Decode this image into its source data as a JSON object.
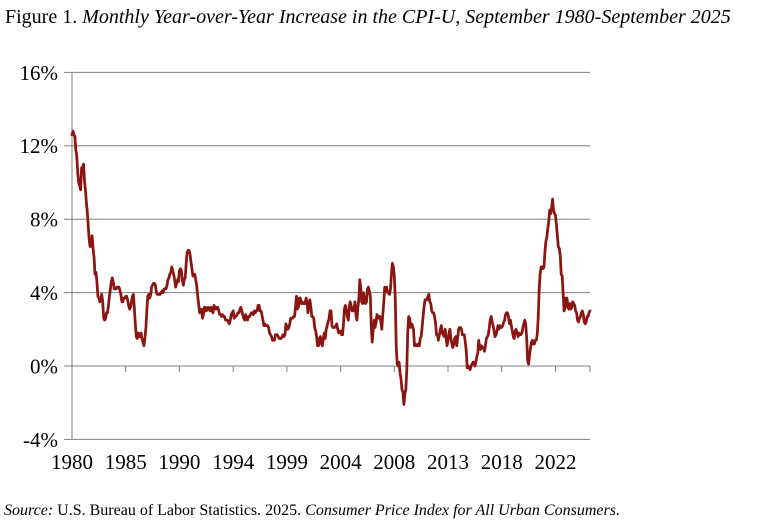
{
  "title": {
    "prefix": "Figure 1. ",
    "italic": "Monthly Year-over-Year Increase in the CPI-U, September 1980-September 2025"
  },
  "source": {
    "label": "Source:",
    "text": " U.S. Bureau of Labor Statistics. 2025. ",
    "publication": "Consumer Price Index for All Urban Consumers."
  },
  "chart_data": {
    "type": "line",
    "title": "Monthly Year-over-Year Increase in the CPI-U, September 1980-September 2025",
    "xlabel": "",
    "ylabel": "",
    "ylim": [
      -4,
      16
    ],
    "grid": true,
    "legend": "none",
    "line_color": "#8B1510",
    "grid_color": "#808080",
    "frequency": "monthly",
    "start": "1980-09",
    "end": "2025-09",
    "y_axis": {
      "ticks": [
        {
          "label": "16%",
          "value": 16
        },
        {
          "label": "12%",
          "value": 12
        },
        {
          "label": "8%",
          "value": 8
        },
        {
          "label": "4%",
          "value": 4
        },
        {
          "label": "0%",
          "value": 0
        },
        {
          "label": "-4%",
          "value": -4
        }
      ]
    },
    "x_axis": {
      "ticks": [
        {
          "label": "1980",
          "month": 0
        },
        {
          "label": "1985",
          "month": 56
        },
        {
          "label": "1990",
          "month": 112
        },
        {
          "label": "1994",
          "month": 168
        },
        {
          "label": "1999",
          "month": 224
        },
        {
          "label": "2004",
          "month": 280
        },
        {
          "label": "2008",
          "month": 336
        },
        {
          "label": "2013",
          "month": 392
        },
        {
          "label": "2018",
          "month": 448
        },
        {
          "label": "2022",
          "month": 504
        }
      ]
    },
    "values_by_year": {
      "1980": [
        12.6,
        12.8,
        12.6,
        12.5
      ],
      "1981": [
        11.8,
        11.4,
        10.5,
        10.0,
        9.8,
        9.6,
        10.8,
        10.8,
        11.0,
        10.1,
        9.6,
        8.9
      ],
      "1982": [
        8.4,
        7.6,
        6.8,
        6.5,
        6.7,
        7.1,
        6.4,
        5.9,
        5.0,
        5.1,
        4.6,
        3.8
      ],
      "1983": [
        3.7,
        3.5,
        3.6,
        3.9,
        3.5,
        2.6,
        2.5,
        2.6,
        2.9,
        2.9,
        3.3,
        3.8
      ],
      "1984": [
        4.2,
        4.6,
        4.8,
        4.6,
        4.2,
        4.2,
        4.2,
        4.3,
        4.3,
        4.3,
        4.1,
        3.9
      ],
      "1985": [
        3.5,
        3.5,
        3.7,
        3.7,
        3.8,
        3.8,
        3.6,
        3.3,
        3.1,
        3.2,
        3.5,
        3.8
      ],
      "1986": [
        3.9,
        3.1,
        2.3,
        1.6,
        1.5,
        1.8,
        1.6,
        1.6,
        1.8,
        1.5,
        1.3,
        1.1
      ],
      "1987": [
        1.5,
        2.1,
        3.0,
        3.8,
        3.9,
        3.7,
        3.9,
        4.3,
        4.4,
        4.5,
        4.5,
        4.4
      ],
      "1988": [
        4.0,
        3.9,
        3.9,
        3.9,
        3.9,
        4.0,
        4.1,
        4.0,
        4.2,
        4.2,
        4.2,
        4.4
      ],
      "1989": [
        4.7,
        4.8,
        5.0,
        5.1,
        5.4,
        5.2,
        5.0,
        4.7,
        4.3,
        4.5,
        4.7,
        4.6
      ],
      "1990": [
        5.2,
        5.3,
        5.2,
        4.7,
        4.4,
        4.7,
        4.8,
        5.6,
        6.2,
        6.3,
        6.3,
        6.1
      ],
      "1991": [
        5.7,
        5.3,
        4.9,
        4.9,
        5.0,
        4.7,
        4.4,
        3.8,
        3.4,
        2.9,
        3.0,
        3.1
      ],
      "1992": [
        2.6,
        2.8,
        3.2,
        3.2,
        3.0,
        3.1,
        3.2,
        3.1,
        3.0,
        3.2,
        3.0,
        2.9
      ],
      "1993": [
        3.3,
        3.2,
        3.1,
        3.2,
        3.2,
        3.0,
        2.8,
        2.8,
        2.7,
        2.8,
        2.7,
        2.7
      ],
      "1994": [
        2.5,
        2.5,
        2.5,
        2.4,
        2.3,
        2.5,
        2.8,
        2.9,
        3.0,
        2.6,
        2.7,
        2.7
      ],
      "1995": [
        2.8,
        2.9,
        2.9,
        3.1,
        3.2,
        3.0,
        2.8,
        2.6,
        2.5,
        2.8,
        2.6,
        2.5
      ],
      "1996": [
        2.7,
        2.7,
        2.8,
        2.9,
        2.9,
        2.8,
        3.0,
        2.9,
        3.0,
        3.0,
        3.3,
        3.3
      ],
      "1997": [
        3.0,
        3.0,
        2.8,
        2.5,
        2.2,
        2.3,
        2.2,
        2.2,
        2.2,
        2.1,
        1.8,
        1.7
      ],
      "1998": [
        1.6,
        1.4,
        1.4,
        1.4,
        1.7,
        1.7,
        1.7,
        1.6,
        1.5,
        1.5,
        1.5,
        1.6
      ],
      "1999": [
        1.7,
        1.6,
        1.7,
        2.3,
        2.1,
        2.0,
        2.1,
        2.3,
        2.6,
        2.6,
        2.6,
        2.7
      ],
      "2000": [
        2.7,
        3.2,
        3.8,
        3.1,
        3.2,
        3.7,
        3.7,
        3.4,
        3.5,
        3.4,
        3.4,
        3.4
      ],
      "2001": [
        3.7,
        3.5,
        2.9,
        3.3,
        3.6,
        3.2,
        2.7,
        2.7,
        2.6,
        2.1,
        1.9,
        1.6
      ],
      "2002": [
        1.1,
        1.1,
        1.5,
        1.6,
        1.2,
        1.1,
        1.5,
        1.8,
        1.5,
        2.0,
        2.2,
        2.4
      ],
      "2003": [
        2.6,
        3.0,
        3.0,
        2.2,
        2.1,
        2.1,
        2.1,
        2.2,
        2.3,
        2.0,
        1.8,
        1.9
      ],
      "2004": [
        1.9,
        1.7,
        1.7,
        2.3,
        3.1,
        3.3,
        3.0,
        2.7,
        2.5,
        3.2,
        3.5,
        3.3
      ],
      "2005": [
        3.0,
        3.0,
        3.1,
        3.5,
        2.8,
        2.5,
        3.2,
        3.6,
        4.7,
        4.3,
        3.5,
        3.4
      ],
      "2006": [
        4.0,
        3.6,
        3.4,
        3.5,
        4.2,
        4.3,
        4.1,
        3.8,
        2.1,
        1.3,
        2.0,
        2.5
      ],
      "2007": [
        2.1,
        2.4,
        2.8,
        2.6,
        2.7,
        2.7,
        2.4,
        2.0,
        2.8,
        3.5,
        4.3,
        4.1
      ],
      "2008": [
        4.3,
        4.0,
        4.0,
        3.9,
        4.2,
        5.0,
        5.6,
        5.4,
        4.9,
        3.7,
        1.1,
        0.1
      ],
      "2009": [
        0.0,
        0.2,
        -0.4,
        -0.7,
        -1.3,
        -1.4,
        -2.1,
        -1.5,
        -1.3,
        -0.2,
        1.8,
        2.7
      ],
      "2010": [
        2.6,
        2.1,
        2.3,
        2.2,
        2.0,
        1.1,
        1.2,
        1.1,
        1.1,
        1.2,
        1.1,
        1.5
      ],
      "2011": [
        1.6,
        2.1,
        2.7,
        3.2,
        3.6,
        3.6,
        3.6,
        3.8,
        3.9,
        3.5,
        3.4,
        3.0
      ],
      "2012": [
        2.9,
        2.9,
        2.7,
        2.3,
        1.7,
        1.7,
        1.4,
        1.7,
        2.0,
        2.2,
        1.8,
        1.7
      ],
      "2013": [
        1.6,
        2.0,
        1.5,
        1.1,
        1.4,
        1.8,
        2.0,
        1.5,
        1.2,
        1.0,
        1.2,
        1.5
      ],
      "2014": [
        1.6,
        1.1,
        1.5,
        2.0,
        2.1,
        2.1,
        2.0,
        1.7,
        1.7,
        1.7,
        1.3,
        0.8
      ],
      "2015": [
        -0.1,
        0.0,
        -0.1,
        -0.2,
        0.0,
        0.1,
        0.2,
        0.2,
        0.0,
        0.2,
        0.5,
        0.7
      ],
      "2016": [
        1.4,
        1.0,
        0.9,
        1.1,
        1.0,
        1.0,
        0.8,
        1.1,
        1.5,
        1.6,
        1.7,
        2.1
      ],
      "2017": [
        2.5,
        2.7,
        2.4,
        2.2,
        1.9,
        1.6,
        1.7,
        1.9,
        2.2,
        2.0,
        2.2,
        2.1
      ],
      "2018": [
        2.1,
        2.2,
        2.4,
        2.5,
        2.8,
        2.9,
        2.9,
        2.7,
        2.3,
        2.5,
        2.2,
        1.9
      ],
      "2019": [
        1.6,
        1.5,
        1.9,
        2.0,
        1.8,
        1.6,
        1.8,
        1.7,
        1.7,
        1.8,
        2.1,
        2.3
      ],
      "2020": [
        2.5,
        2.3,
        1.5,
        0.3,
        0.1,
        0.6,
        1.0,
        1.3,
        1.4,
        1.2,
        1.2,
        1.4
      ],
      "2021": [
        1.4,
        1.7,
        2.6,
        4.2,
        5.0,
        5.4,
        5.4,
        5.3,
        5.4,
        6.2,
        6.8,
        7.0
      ],
      "2022": [
        7.5,
        7.9,
        8.5,
        8.3,
        8.6,
        9.1,
        8.5,
        8.3,
        8.2,
        7.7,
        7.1,
        6.5
      ],
      "2023": [
        6.4,
        6.0,
        5.0,
        4.9,
        4.0,
        3.0,
        3.2,
        3.7,
        3.7,
        3.2,
        3.1,
        3.4
      ],
      "2024": [
        3.1,
        3.2,
        3.5,
        3.4,
        3.3,
        3.0,
        2.9,
        2.5,
        2.4,
        2.6,
        2.7,
        2.9
      ],
      "2025": [
        3.0,
        2.8,
        2.4,
        2.3,
        2.4,
        2.7,
        2.7,
        2.9,
        3.0
      ]
    }
  }
}
